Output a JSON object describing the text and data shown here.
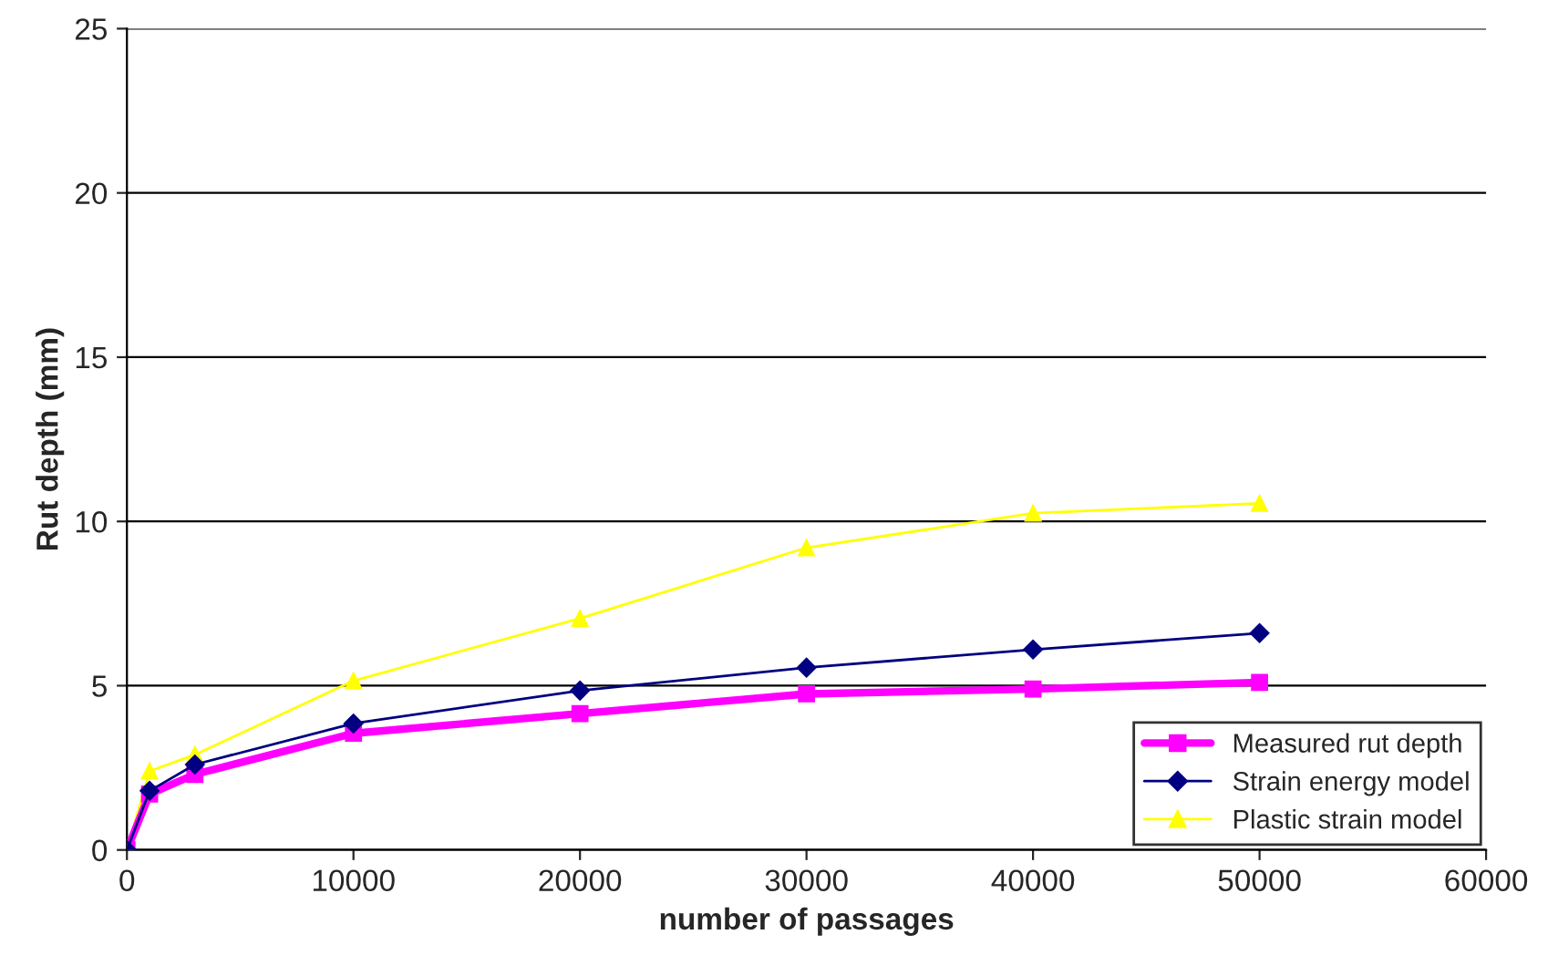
{
  "chart_data": {
    "type": "line",
    "xlabel": "number of passages",
    "ylabel": "Rut depth (mm)",
    "x": [
      0,
      1000,
      3000,
      10000,
      20000,
      30000,
      40000,
      50000
    ],
    "series": [
      {
        "name": "Measured rut depth",
        "color": "#ff00ff",
        "marker": "square",
        "values": [
          0,
          1.7,
          2.3,
          3.55,
          4.15,
          4.75,
          4.9,
          5.1
        ]
      },
      {
        "name": "Strain energy model",
        "color": "#000080",
        "marker": "diamond",
        "values": [
          0,
          1.8,
          2.6,
          3.85,
          4.85,
          5.55,
          6.1,
          6.6
        ]
      },
      {
        "name": "Plastic strain model",
        "color": "#ffff00",
        "marker": "triangle",
        "values": [
          0,
          2.4,
          2.9,
          5.15,
          7.05,
          9.2,
          10.25,
          10.55
        ]
      }
    ],
    "xlim": [
      0,
      60000
    ],
    "xticks": [
      0,
      10000,
      20000,
      30000,
      40000,
      50000,
      60000
    ],
    "ylim": [
      0,
      25
    ],
    "yticks": [
      0,
      5,
      10,
      15,
      20,
      25
    ],
    "grid": "y",
    "legend": "bottom right",
    "line_style": "solid"
  }
}
